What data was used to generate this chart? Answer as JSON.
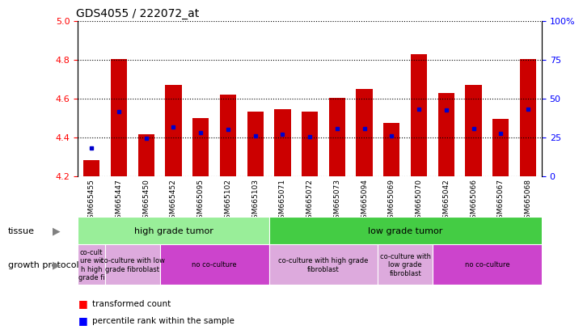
{
  "title": "GDS4055 / 222072_at",
  "samples": [
    "GSM665455",
    "GSM665447",
    "GSM665450",
    "GSM665452",
    "GSM665095",
    "GSM665102",
    "GSM665103",
    "GSM665071",
    "GSM665072",
    "GSM665073",
    "GSM665094",
    "GSM665069",
    "GSM665070",
    "GSM665042",
    "GSM665066",
    "GSM665067",
    "GSM665068"
  ],
  "bar_values": [
    4.285,
    4.805,
    4.415,
    4.67,
    4.5,
    4.62,
    4.535,
    4.545,
    4.535,
    4.605,
    4.65,
    4.475,
    4.83,
    4.63,
    4.67,
    4.495,
    4.805
  ],
  "blue_dot_values": [
    4.345,
    4.535,
    4.395,
    4.455,
    4.425,
    4.44,
    4.41,
    4.415,
    4.405,
    4.445,
    4.445,
    4.41,
    4.545,
    4.54,
    4.445,
    4.42,
    4.545
  ],
  "bar_bottom": 4.2,
  "ylim_left": [
    4.2,
    5.0
  ],
  "ylim_right": [
    0,
    100
  ],
  "yticks_left": [
    4.2,
    4.4,
    4.6,
    4.8,
    5.0
  ],
  "yticks_right": [
    0,
    25,
    50,
    75,
    100
  ],
  "ytick_labels_right": [
    "0",
    "25",
    "50",
    "75",
    "100%"
  ],
  "bar_color": "#cc0000",
  "dot_color": "#0000cc",
  "xticklabel_bg": "#cccccc",
  "tissue_groups": [
    {
      "label": "high grade tumor",
      "start": 0,
      "end": 7,
      "color": "#99ee99"
    },
    {
      "label": "low grade tumor",
      "start": 7,
      "end": 17,
      "color": "#44cc44"
    }
  ],
  "growth_groups": [
    {
      "label": "co-cult\nure wit\nh high\ngrade fi",
      "start": 0,
      "end": 1,
      "color": "#ddaadd"
    },
    {
      "label": "co-culture with low\ngrade fibroblast",
      "start": 1,
      "end": 3,
      "color": "#ddaadd"
    },
    {
      "label": "no co-culture",
      "start": 3,
      "end": 7,
      "color": "#cc44cc"
    },
    {
      "label": "co-culture with high grade\nfibroblast",
      "start": 7,
      "end": 11,
      "color": "#ddaadd"
    },
    {
      "label": "co-culture with\nlow grade\nfibroblast",
      "start": 11,
      "end": 13,
      "color": "#ddaadd"
    },
    {
      "label": "no co-culture",
      "start": 13,
      "end": 17,
      "color": "#cc44cc"
    }
  ]
}
